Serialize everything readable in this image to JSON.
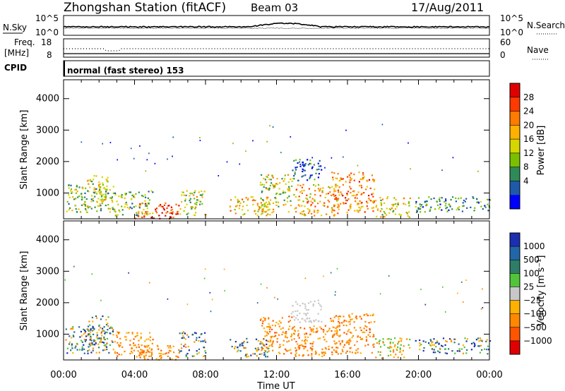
{
  "header": {
    "title": "Zhongshan Station (fitACF)",
    "beam": "Beam 03",
    "date": "17/Aug/2011"
  },
  "nsky_panel": {
    "label": "N.Sky",
    "left_ticks": [
      "10^5",
      "10^0"
    ],
    "right_ticks": [
      "10^5",
      "10^0"
    ],
    "right_label": "N.Search"
  },
  "freq_panel": {
    "label_line1": "Freq.",
    "label_line2": "[MHz]",
    "left_ticks": [
      "18",
      "8"
    ],
    "right_ticks": [
      "60",
      "0"
    ],
    "right_label": "Nave"
  },
  "cpid_panel": {
    "label": "CPID",
    "mode_text": "normal (fast stereo) 153"
  },
  "power_colorbar": {
    "label": "Power [dB]",
    "ticks": [
      "28",
      "24",
      "20",
      "16",
      "12",
      "8",
      "4"
    ],
    "colors": [
      "#e00000",
      "#ff3a00",
      "#ff7a00",
      "#ffb000",
      "#d6d600",
      "#7ac000",
      "#2e8b57",
      "#1e5aa8",
      "#0000ff"
    ]
  },
  "velocity_colorbar": {
    "label": "Velocity [m s⁻¹]",
    "ticks": [
      "1000",
      "500",
      "100",
      "25",
      "−25",
      "−100",
      "−500",
      "−1000"
    ],
    "colors": [
      "#1c2fb0",
      "#2266aa",
      "#2e7d68",
      "#52c43a",
      "#c8c8c8",
      "#ffb000",
      "#ff8800",
      "#ff5500",
      "#e00000"
    ]
  },
  "chart_data": {
    "type": "heatmap",
    "panels": [
      "Power [dB]",
      "Velocity [m s⁻¹]"
    ],
    "xlabel": "Time UT",
    "xticks": [
      "00:00",
      "04:00",
      "08:00",
      "12:00",
      "16:00",
      "20:00",
      "00:00"
    ],
    "xlim_hours": [
      0,
      24
    ],
    "ylabel": "Slant Range [km]",
    "yticks": [
      1000,
      2000,
      3000,
      4000
    ],
    "ylim_km": [
      180,
      4600
    ],
    "echo_patches": [
      {
        "t": [
          0.1,
          2.8
        ],
        "r": [
          400,
          1300
        ],
        "power_level": 3,
        "velocity": "mixed +/- 500"
      },
      {
        "t": [
          1.3,
          2.5
        ],
        "r": [
          600,
          1600
        ],
        "power_level": 4,
        "velocity": "mixed +/- 500"
      },
      {
        "t": [
          2.8,
          5.0
        ],
        "r": [
          300,
          1100
        ],
        "power_level": 3,
        "velocity": "-100 to -500"
      },
      {
        "t": [
          4.0,
          6.5
        ],
        "r": [
          200,
          700
        ],
        "power_level": 7,
        "velocity": "-100 to -500"
      },
      {
        "t": [
          6.5,
          8.0
        ],
        "r": [
          300,
          1100
        ],
        "power_level": 4,
        "velocity": "mixed +/- 100"
      },
      {
        "t": [
          9.3,
          11.6
        ],
        "r": [
          300,
          900
        ],
        "power_level": 5,
        "velocity": "mixed +/- 100"
      },
      {
        "t": [
          11.0,
          13.0
        ],
        "r": [
          400,
          1600
        ],
        "power_level": 4,
        "velocity": "-100 to -500"
      },
      {
        "t": [
          13.0,
          15.5
        ],
        "r": [
          300,
          1300
        ],
        "power_level": 5,
        "velocity": "-100 to -500"
      },
      {
        "t": [
          15.0,
          17.5
        ],
        "r": [
          400,
          1700
        ],
        "power_level": 6,
        "velocity": "-100 to -500"
      },
      {
        "t": [
          17.5,
          19.5
        ],
        "r": [
          250,
          900
        ],
        "power_level": 4,
        "velocity": "-25 to -100"
      },
      {
        "t": [
          19.8,
          24.0
        ],
        "r": [
          400,
          900
        ],
        "power_level": 2,
        "velocity": "mixed +/- 100"
      },
      {
        "t": [
          12.8,
          14.5
        ],
        "r": [
          1400,
          2100
        ],
        "power_level": 1,
        "velocity": "+/- 25 (grey)"
      }
    ]
  }
}
